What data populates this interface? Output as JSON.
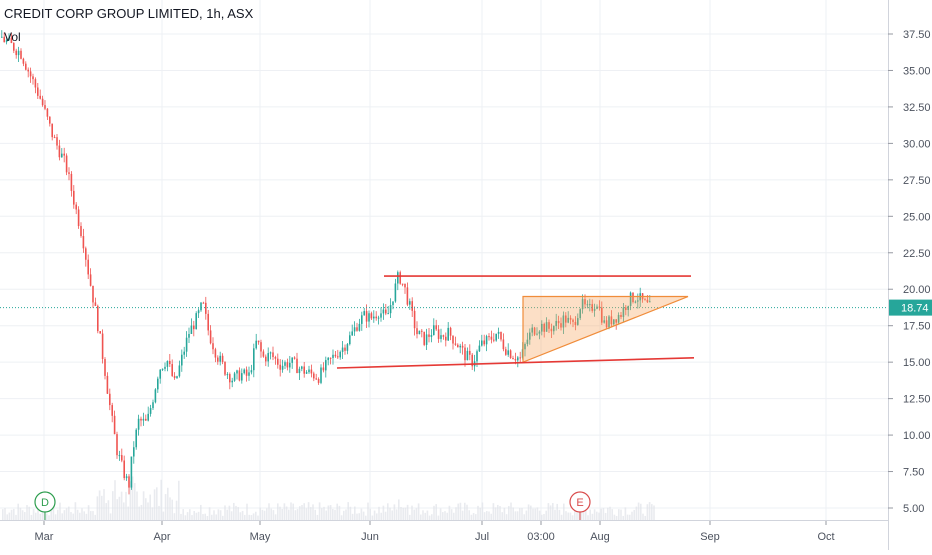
{
  "chart_data": {
    "type": "candlestick",
    "title": "CREDIT CORP GROUP LIMITED, 1h, ASX",
    "volume_label": "Vol",
    "x_ticks": [
      "Mar",
      "Apr",
      "May",
      "Jun",
      "Jul",
      "03:00",
      "Aug",
      "Sep",
      "Oct"
    ],
    "y_ticks": [
      "37.50",
      "35.00",
      "32.50",
      "30.00",
      "27.50",
      "25.00",
      "22.50",
      "20.00",
      "17.50",
      "15.00",
      "12.50",
      "10.00",
      "7.50",
      "5.00"
    ],
    "ylim": [
      4.5,
      38.5
    ],
    "last_price": "18.74",
    "last_price_value": 18.74,
    "grid": true,
    "price_path": [
      [
        0,
        37.3
      ],
      [
        20,
        36.2
      ],
      [
        40,
        33.0
      ],
      [
        52,
        30.5
      ],
      [
        65,
        28.5
      ],
      [
        75,
        25.5
      ],
      [
        82,
        23.5
      ],
      [
        88,
        21.0
      ],
      [
        96,
        18.0
      ],
      [
        104,
        14.5
      ],
      [
        110,
        11.5
      ],
      [
        116,
        9.0
      ],
      [
        122,
        7.6
      ],
      [
        128,
        6.5
      ],
      [
        132,
        9.0
      ],
      [
        138,
        11.0
      ],
      [
        146,
        10.8
      ],
      [
        152,
        12.5
      ],
      [
        158,
        14.5
      ],
      [
        166,
        15.2
      ],
      [
        174,
        13.5
      ],
      [
        182,
        15.5
      ],
      [
        188,
        17.0
      ],
      [
        196,
        18.0
      ],
      [
        202,
        19.0
      ],
      [
        208,
        17.0
      ],
      [
        216,
        15.5
      ],
      [
        224,
        14.5
      ],
      [
        232,
        13.8
      ],
      [
        240,
        14.2
      ],
      [
        248,
        14.0
      ],
      [
        256,
        16.5
      ],
      [
        262,
        15.3
      ],
      [
        270,
        15.5
      ],
      [
        280,
        14.8
      ],
      [
        290,
        15.0
      ],
      [
        300,
        14.5
      ],
      [
        310,
        14.2
      ],
      [
        318,
        14.0
      ],
      [
        326,
        14.8
      ],
      [
        334,
        15.5
      ],
      [
        342,
        16.0
      ],
      [
        350,
        16.8
      ],
      [
        358,
        17.8
      ],
      [
        364,
        18.2
      ],
      [
        370,
        18.0
      ],
      [
        378,
        18.5
      ],
      [
        386,
        18.0
      ],
      [
        392,
        19.5
      ],
      [
        398,
        21.0
      ],
      [
        404,
        20.0
      ],
      [
        410,
        18.5
      ],
      [
        416,
        17.0
      ],
      [
        424,
        16.5
      ],
      [
        432,
        17.2
      ],
      [
        440,
        16.8
      ],
      [
        448,
        17.0
      ],
      [
        456,
        16.3
      ],
      [
        464,
        15.5
      ],
      [
        472,
        15.0
      ],
      [
        480,
        16.2
      ],
      [
        488,
        16.5
      ],
      [
        496,
        17.0
      ],
      [
        504,
        16.0
      ],
      [
        512,
        15.5
      ],
      [
        520,
        15.2
      ],
      [
        526,
        16.5
      ],
      [
        532,
        17.2
      ],
      [
        540,
        17.5
      ],
      [
        548,
        17.3
      ],
      [
        556,
        17.6
      ],
      [
        564,
        18.0
      ],
      [
        572,
        17.5
      ],
      [
        580,
        19.0
      ],
      [
        588,
        18.5
      ],
      [
        596,
        19.2
      ],
      [
        604,
        17.5
      ],
      [
        612,
        18.0
      ],
      [
        620,
        18.3
      ],
      [
        628,
        19.3
      ],
      [
        636,
        19.5
      ],
      [
        644,
        19.0
      ],
      [
        650,
        18.7
      ]
    ],
    "support_line": {
      "from": [
        337,
        14.6
      ],
      "to": [
        694,
        15.3
      ]
    },
    "resistance_line": {
      "from": [
        384,
        20.9
      ],
      "to": [
        691,
        20.9
      ]
    },
    "triangle": {
      "points": [
        [
          523,
          19.5
        ],
        [
          688,
          19.5
        ],
        [
          523,
          15.0
        ]
      ]
    },
    "events": [
      {
        "label": "D",
        "x": 45,
        "color": "#2e9e4f"
      },
      {
        "label": "E",
        "x": 580,
        "color": "#d94d4d"
      }
    ]
  }
}
